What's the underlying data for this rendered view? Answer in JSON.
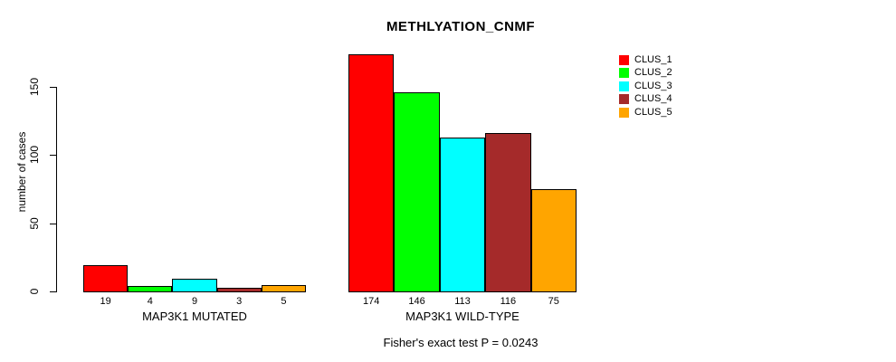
{
  "page": {
    "title": "METHLYATION_CNMF",
    "caption": "Fisher's exact test P = 0.0243"
  },
  "chart_data": {
    "type": "bar",
    "title": "METHLYATION_CNMF",
    "xlabel": "",
    "ylabel": "number of cases",
    "ylim": [
      0,
      174
    ],
    "yticks": [
      0,
      50,
      100,
      150
    ],
    "grid": false,
    "legend_position": "top-right",
    "categories": [
      "MAP3K1 MUTATED",
      "MAP3K1 WILD-TYPE"
    ],
    "series": [
      {
        "name": "CLUS_1",
        "color": "#FF0000",
        "values": [
          19,
          174
        ]
      },
      {
        "name": "CLUS_2",
        "color": "#00FF00",
        "values": [
          4,
          146
        ]
      },
      {
        "name": "CLUS_3",
        "color": "#00FFFF",
        "values": [
          9,
          113
        ]
      },
      {
        "name": "CLUS_4",
        "color": "#A52A2A",
        "values": [
          3,
          116
        ]
      },
      {
        "name": "CLUS_5",
        "color": "#FFA500",
        "values": [
          5,
          75
        ]
      }
    ],
    "bar_value_labels": [
      [
        19,
        4,
        9,
        3,
        5
      ],
      [
        174,
        146,
        113,
        116,
        75
      ]
    ],
    "annotation": "Fisher's exact test P = 0.0243"
  }
}
